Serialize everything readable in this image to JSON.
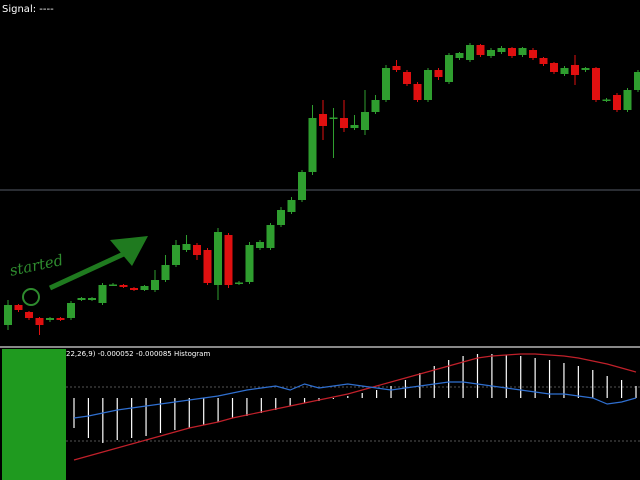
{
  "chart_data": [
    {
      "type": "candlestick",
      "title": "Signal: ----",
      "annotation": "started",
      "up_color": "#2f9e2f",
      "down_color": "#e01010",
      "ylim": [
        50,
        400
      ],
      "open": [
        75,
        95,
        88,
        82,
        80,
        82,
        82,
        100,
        100,
        97,
        115,
        115,
        112,
        110,
        110,
        120,
        135,
        150,
        155,
        150,
        115,
        165,
        117,
        118,
        152,
        152,
        175,
        188,
        200,
        228,
        286,
        282,
        282,
        272,
        270,
        288,
        300,
        334,
        328,
        316,
        300,
        330,
        318,
        342,
        340,
        355,
        344,
        348,
        352,
        345,
        350,
        342,
        337,
        326,
        335,
        330,
        332,
        300,
        305,
        290,
        310
      ],
      "high": [
        100,
        96,
        89,
        83,
        83,
        83,
        99,
        103,
        103,
        117,
        117,
        116,
        113,
        115,
        130,
        145,
        160,
        165,
        157,
        152,
        172,
        167,
        119,
        158,
        160,
        177,
        193,
        203,
        230,
        295,
        300,
        292,
        300,
        285,
        310,
        305,
        335,
        340,
        330,
        318,
        332,
        332,
        347,
        348,
        357,
        356,
        352,
        354,
        353,
        353,
        352,
        343,
        338,
        334,
        345,
        333,
        333,
        302,
        307,
        312,
        330
      ],
      "low": [
        70,
        88,
        80,
        65,
        78,
        79,
        80,
        99,
        99,
        95,
        114,
        112,
        109,
        109,
        108,
        118,
        133,
        148,
        140,
        115,
        100,
        112,
        115,
        116,
        150,
        150,
        173,
        186,
        198,
        225,
        260,
        242,
        268,
        270,
        265,
        286,
        298,
        328,
        314,
        298,
        298,
        320,
        316,
        340,
        338,
        343,
        342,
        346,
        342,
        343,
        340,
        334,
        326,
        324,
        315,
        328,
        298,
        298,
        288,
        288,
        308
      ],
      "close": [
        95,
        90,
        82,
        75,
        82,
        80,
        97,
        102,
        102,
        115,
        115.5,
        113,
        110,
        114,
        120,
        135,
        155,
        156,
        145,
        117,
        168,
        115,
        117.5,
        155,
        158,
        175,
        190,
        200,
        228,
        282,
        274,
        282.5,
        272,
        275,
        288,
        300,
        332,
        330,
        316,
        300,
        330,
        323,
        345,
        347,
        355,
        345,
        350,
        352,
        344,
        352,
        342,
        336,
        328,
        332,
        325,
        332,
        300,
        300.5,
        290,
        310,
        328
      ]
    },
    {
      "type": "histogram-indicator",
      "title": "22,26,9) -0.000052 -0.000085 Histogram",
      "ylim": [
        -82,
        48
      ],
      "series": [
        {
          "name": "Histogram",
          "color": "#ffffff",
          "values": [
            -30,
            -40,
            -45,
            -42,
            -40,
            -38,
            -35,
            -32,
            -30,
            -27,
            -24,
            -20,
            -18,
            -15,
            -12,
            -8,
            -5,
            -3,
            -1,
            2,
            5,
            8,
            12,
            18,
            25,
            32,
            38,
            42,
            44,
            44,
            43,
            42,
            40,
            38,
            35,
            32,
            28,
            22,
            18,
            12
          ]
        },
        {
          "name": "Signal",
          "color": "#c0202a",
          "values": [
            -62,
            -58,
            -54,
            -50,
            -46,
            -42,
            -38,
            -34,
            -30,
            -27,
            -24,
            -20,
            -17,
            -14,
            -11,
            -8,
            -5,
            -2,
            1,
            4,
            8,
            12,
            16,
            20,
            24,
            28,
            32,
            36,
            40,
            42,
            43,
            44,
            44,
            43,
            42,
            40,
            37,
            34,
            30,
            26
          ]
        },
        {
          "name": "Main",
          "color": "#2f6fd0",
          "values": [
            -20,
            -18,
            -15,
            -12,
            -10,
            -8,
            -6,
            -4,
            -2,
            0,
            2,
            5,
            8,
            10,
            12,
            8,
            14,
            10,
            12,
            14,
            12,
            10,
            8,
            10,
            12,
            14,
            16,
            16,
            14,
            12,
            10,
            8,
            6,
            4,
            4,
            2,
            0,
            -6,
            -4,
            0
          ]
        }
      ]
    }
  ]
}
